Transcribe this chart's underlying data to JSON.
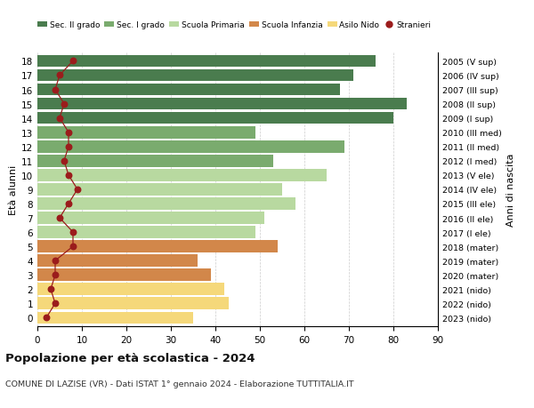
{
  "ages": [
    18,
    17,
    16,
    15,
    14,
    13,
    12,
    11,
    10,
    9,
    8,
    7,
    6,
    5,
    4,
    3,
    2,
    1,
    0
  ],
  "years": [
    "2005 (V sup)",
    "2006 (IV sup)",
    "2007 (III sup)",
    "2008 (II sup)",
    "2009 (I sup)",
    "2010 (III med)",
    "2011 (II med)",
    "2012 (I med)",
    "2013 (V ele)",
    "2014 (IV ele)",
    "2015 (III ele)",
    "2016 (II ele)",
    "2017 (I ele)",
    "2018 (mater)",
    "2019 (mater)",
    "2020 (mater)",
    "2021 (nido)",
    "2022 (nido)",
    "2023 (nido)"
  ],
  "bar_values": [
    76,
    71,
    68,
    83,
    80,
    49,
    69,
    53,
    65,
    55,
    58,
    51,
    49,
    54,
    36,
    39,
    42,
    43,
    35
  ],
  "bar_colors": [
    "#4a7c4e",
    "#4a7c4e",
    "#4a7c4e",
    "#4a7c4e",
    "#4a7c4e",
    "#7aab6e",
    "#7aab6e",
    "#7aab6e",
    "#b8d9a0",
    "#b8d9a0",
    "#b8d9a0",
    "#b8d9a0",
    "#b8d9a0",
    "#d2874a",
    "#d2874a",
    "#d2874a",
    "#f5d87a",
    "#f5d87a",
    "#f5d87a"
  ],
  "stranieri_values": [
    8,
    5,
    4,
    6,
    5,
    7,
    7,
    6,
    7,
    9,
    7,
    5,
    8,
    8,
    4,
    4,
    3,
    4,
    2
  ],
  "stranieri_color": "#9b1c1c",
  "legend_labels": [
    "Sec. II grado",
    "Sec. I grado",
    "Scuola Primaria",
    "Scuola Infanzia",
    "Asilo Nido",
    "Stranieri"
  ],
  "legend_colors": [
    "#4a7c4e",
    "#7aab6e",
    "#b8d9a0",
    "#d2874a",
    "#f5d87a",
    "#9b1c1c"
  ],
  "title": "Popolazione per età scolastica - 2024",
  "subtitle": "COMUNE DI LAZISE (VR) - Dati ISTAT 1° gennaio 2024 - Elaborazione TUTTITALIA.IT",
  "ylabel_left": "Età alunni",
  "ylabel_right": "Anni di nascita",
  "xlim": [
    0,
    90
  ],
  "xticks": [
    0,
    10,
    20,
    30,
    40,
    50,
    60,
    70,
    80,
    90
  ],
  "background_color": "#ffffff",
  "grid_color": "#cccccc"
}
